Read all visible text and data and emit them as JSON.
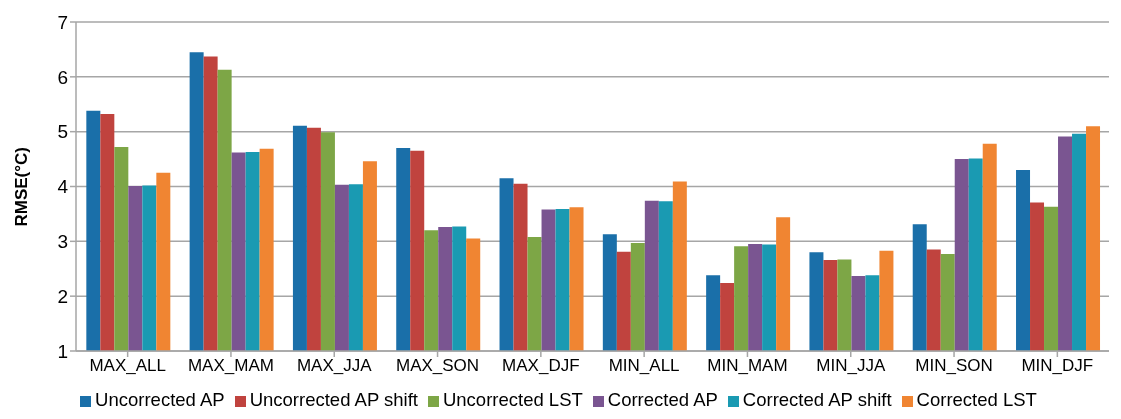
{
  "chart_data": {
    "type": "bar",
    "ylabel": "RMSE(°C)",
    "categories": [
      "MAX_ALL",
      "MAX_MAM",
      "MAX_JJA",
      "MAX_SON",
      "MAX_DJF",
      "MIN_ALL",
      "MIN_MAM",
      "MIN_JJA",
      "MIN_SON",
      "MIN_DJF"
    ],
    "series": [
      {
        "name": "Uncorrected AP",
        "color": "#1a6fa9",
        "values": [
          5.38,
          6.45,
          5.11,
          4.7,
          4.15,
          3.13,
          2.38,
          2.8,
          3.31,
          4.3
        ]
      },
      {
        "name": "Uncorrected AP shift",
        "color": "#c0433e",
        "values": [
          5.32,
          6.37,
          5.07,
          4.65,
          4.05,
          2.81,
          2.24,
          2.66,
          2.85,
          3.71
        ]
      },
      {
        "name": "Uncorrected LST",
        "color": "#7da646",
        "values": [
          4.72,
          6.13,
          4.99,
          3.2,
          3.08,
          2.97,
          2.91,
          2.67,
          2.77,
          3.63
        ]
      },
      {
        "name": "Corrected AP",
        "color": "#7a5591",
        "values": [
          4.01,
          4.62,
          4.03,
          3.26,
          3.58,
          3.74,
          2.95,
          2.37,
          4.5,
          4.91
        ]
      },
      {
        "name": "Corrected AP shift",
        "color": "#1a9ab2",
        "values": [
          4.02,
          4.63,
          4.04,
          3.27,
          3.59,
          3.73,
          2.94,
          2.38,
          4.51,
          4.96
        ]
      },
      {
        "name": "Corrected LST",
        "color": "#f08532",
        "values": [
          4.25,
          4.69,
          4.46,
          3.05,
          3.62,
          4.09,
          3.44,
          2.83,
          4.78,
          5.1
        ]
      }
    ],
    "ylim": [
      1,
      7
    ],
    "yticks": [
      1,
      2,
      3,
      4,
      5,
      6,
      7
    ],
    "grid": "y",
    "legend": "bottom"
  }
}
